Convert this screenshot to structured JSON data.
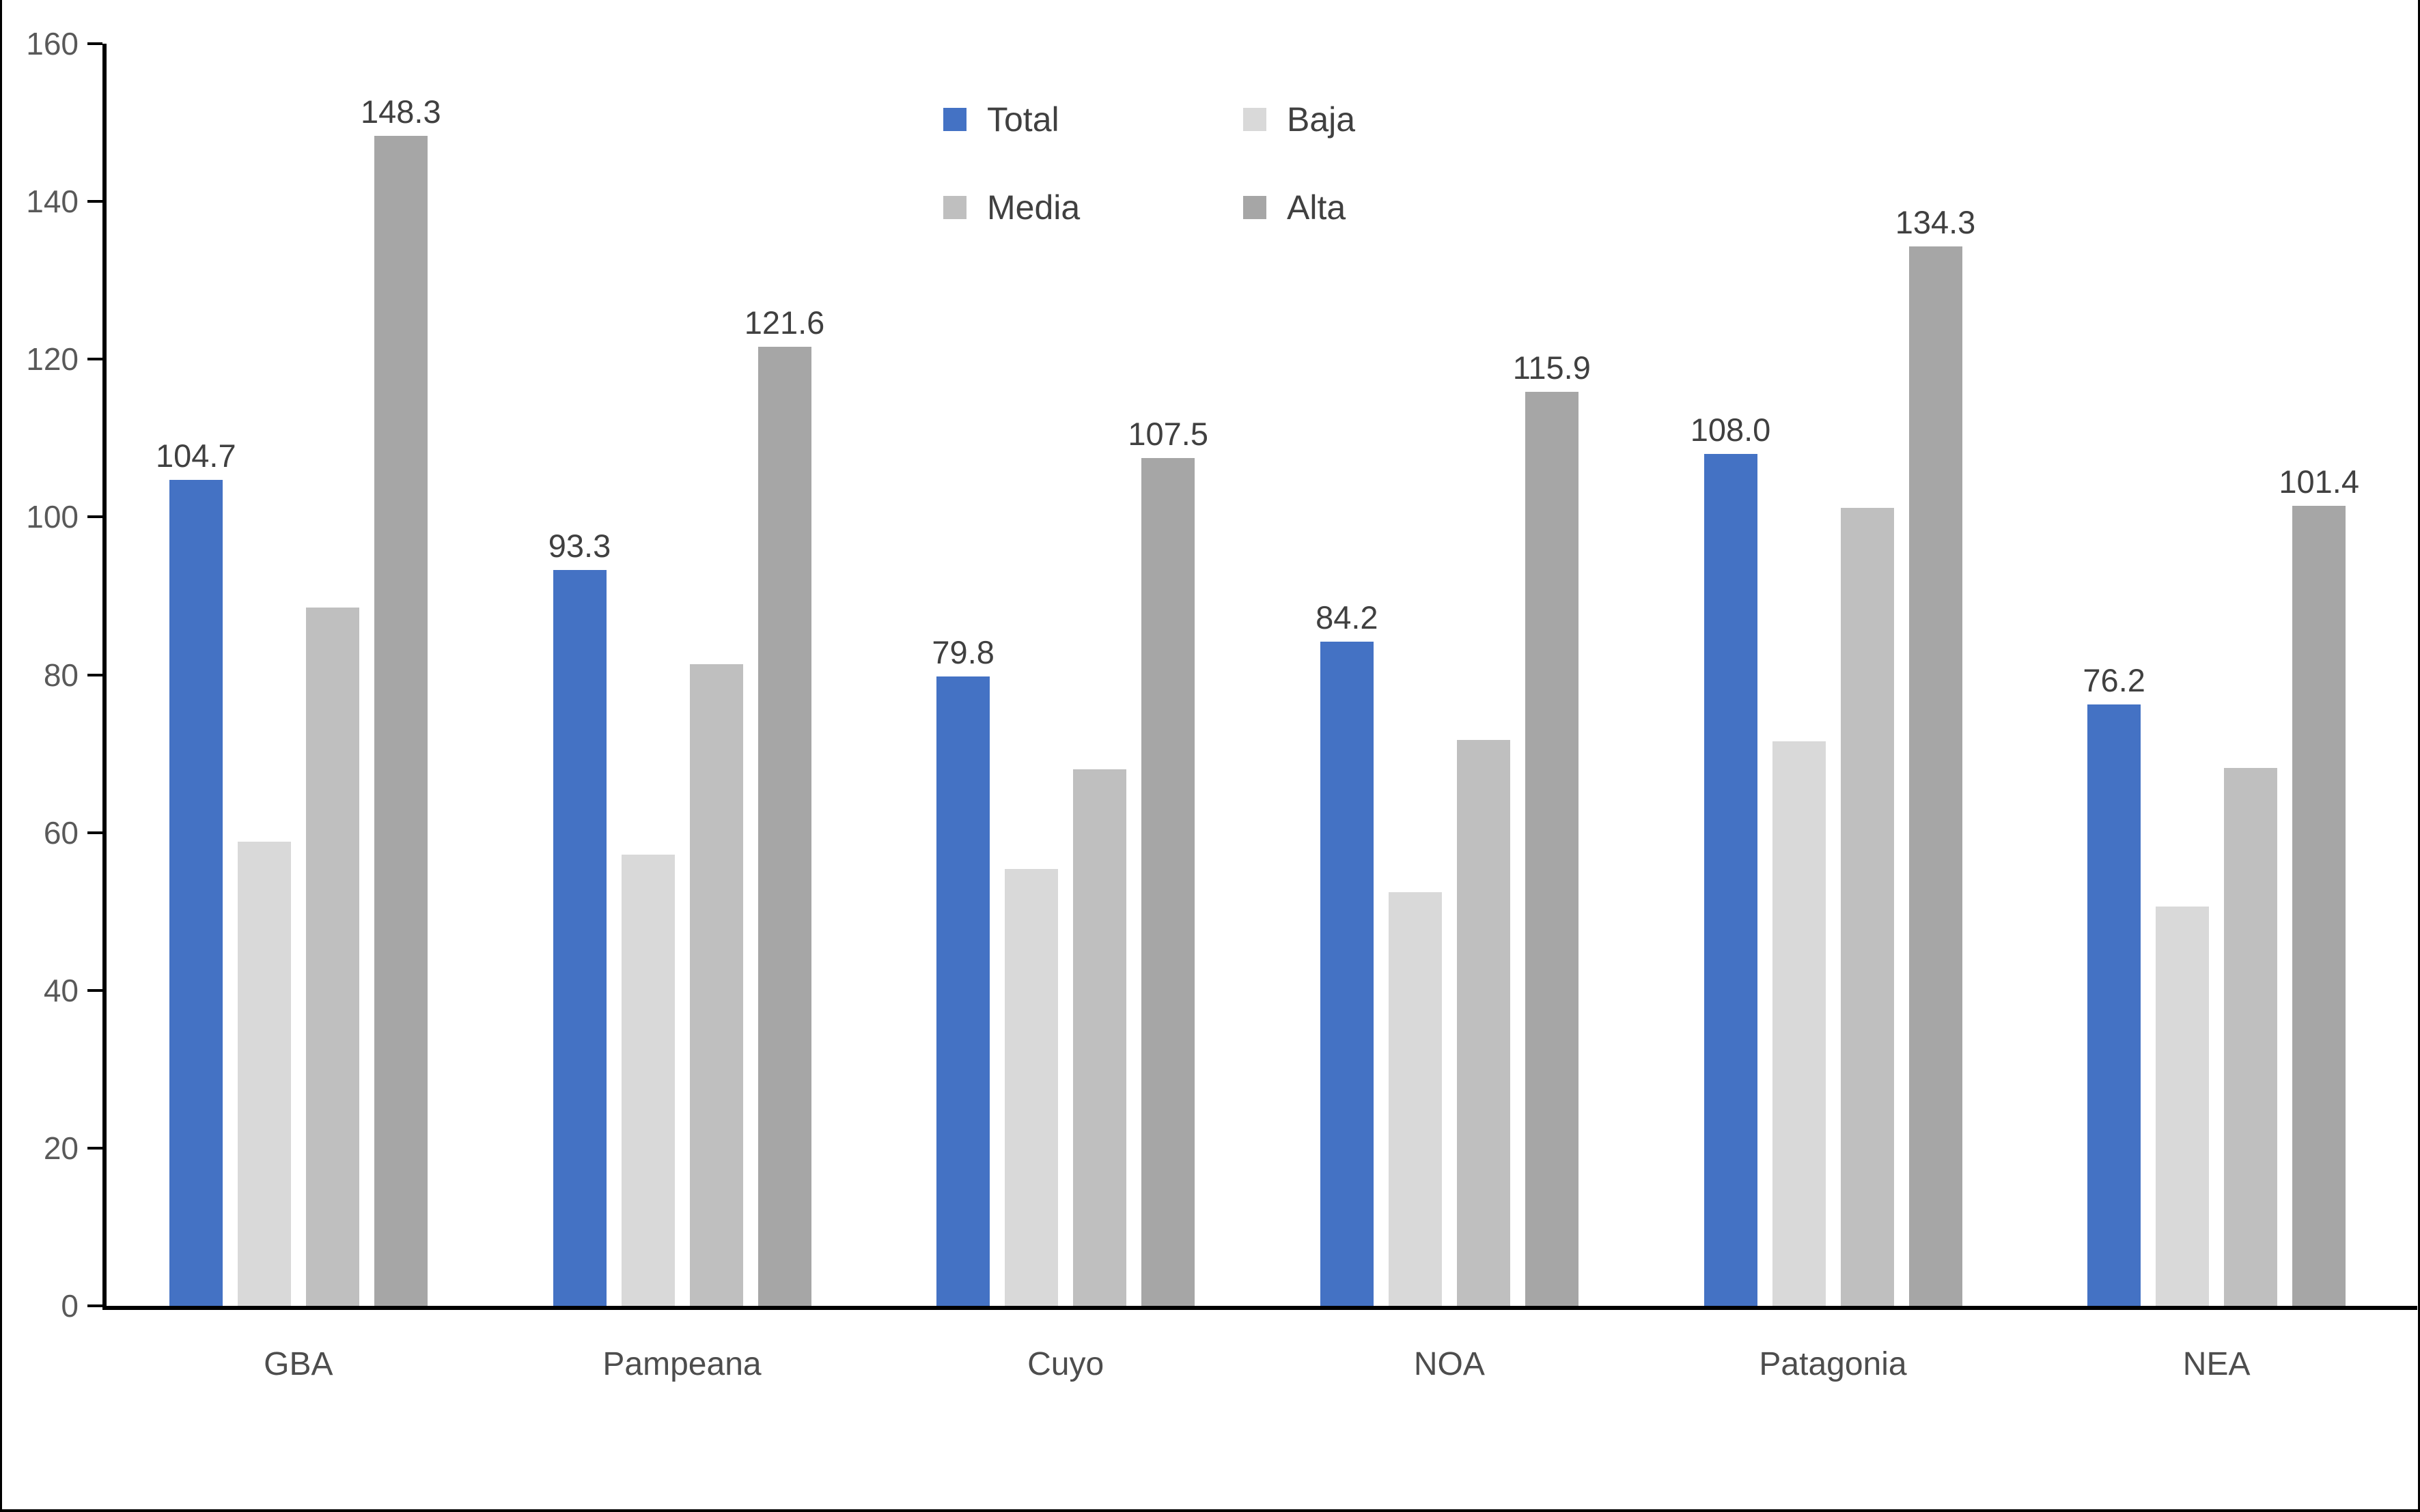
{
  "chart_data": {
    "type": "bar",
    "title": "",
    "xlabel": "",
    "ylabel": "",
    "categories": [
      "GBA",
      "Pampeana",
      "Cuyo",
      "NOA",
      "Patagonia",
      "NEA"
    ],
    "series": [
      {
        "name": "Total",
        "color": "#4472C4",
        "values": [
          104.7,
          93.3,
          79.8,
          84.2,
          108.0,
          76.2
        ],
        "data_labels_shown": true
      },
      {
        "name": "Baja",
        "color": "#D9D9D9",
        "values": [
          58.8,
          57.2,
          55.4,
          52.4,
          71.6,
          50.6
        ],
        "data_labels_shown": false
      },
      {
        "name": "Media",
        "color": "#BFBFBF",
        "values": [
          88.5,
          81.3,
          68.0,
          71.7,
          101.2,
          68.2
        ],
        "data_labels_shown": false
      },
      {
        "name": "Alta",
        "color": "#A6A6A6",
        "values": [
          148.3,
          121.6,
          107.5,
          115.9,
          134.3,
          101.4
        ],
        "data_labels_shown": true
      }
    ],
    "shown_data_labels": {
      "Total": [
        "104.7",
        "93.3",
        "79.8",
        "84.2",
        "108.0",
        "76.2"
      ],
      "Alta": [
        "148.3",
        "121.6",
        "107.5",
        "115.9",
        "134.3",
        "101.4"
      ]
    },
    "ylim": [
      0,
      160
    ],
    "ytick_step": 20,
    "ytick_labels": [
      "0",
      "20",
      "40",
      "60",
      "80",
      "100",
      "120",
      "140",
      "160"
    ],
    "grid": false,
    "legend_position": "top-center",
    "legend_items": [
      {
        "label": "Total",
        "color": "#4472C4"
      },
      {
        "label": "Baja",
        "color": "#D9D9D9"
      },
      {
        "label": "Media",
        "color": "#BFBFBF"
      },
      {
        "label": "Alta",
        "color": "#A6A6A6"
      }
    ]
  },
  "colors": {
    "axis": "#000000",
    "tick_label": "#595959",
    "data_label": "#404040",
    "category_label": "#4d4d4d",
    "background": "#ffffff",
    "chart_border": "#000000"
  }
}
